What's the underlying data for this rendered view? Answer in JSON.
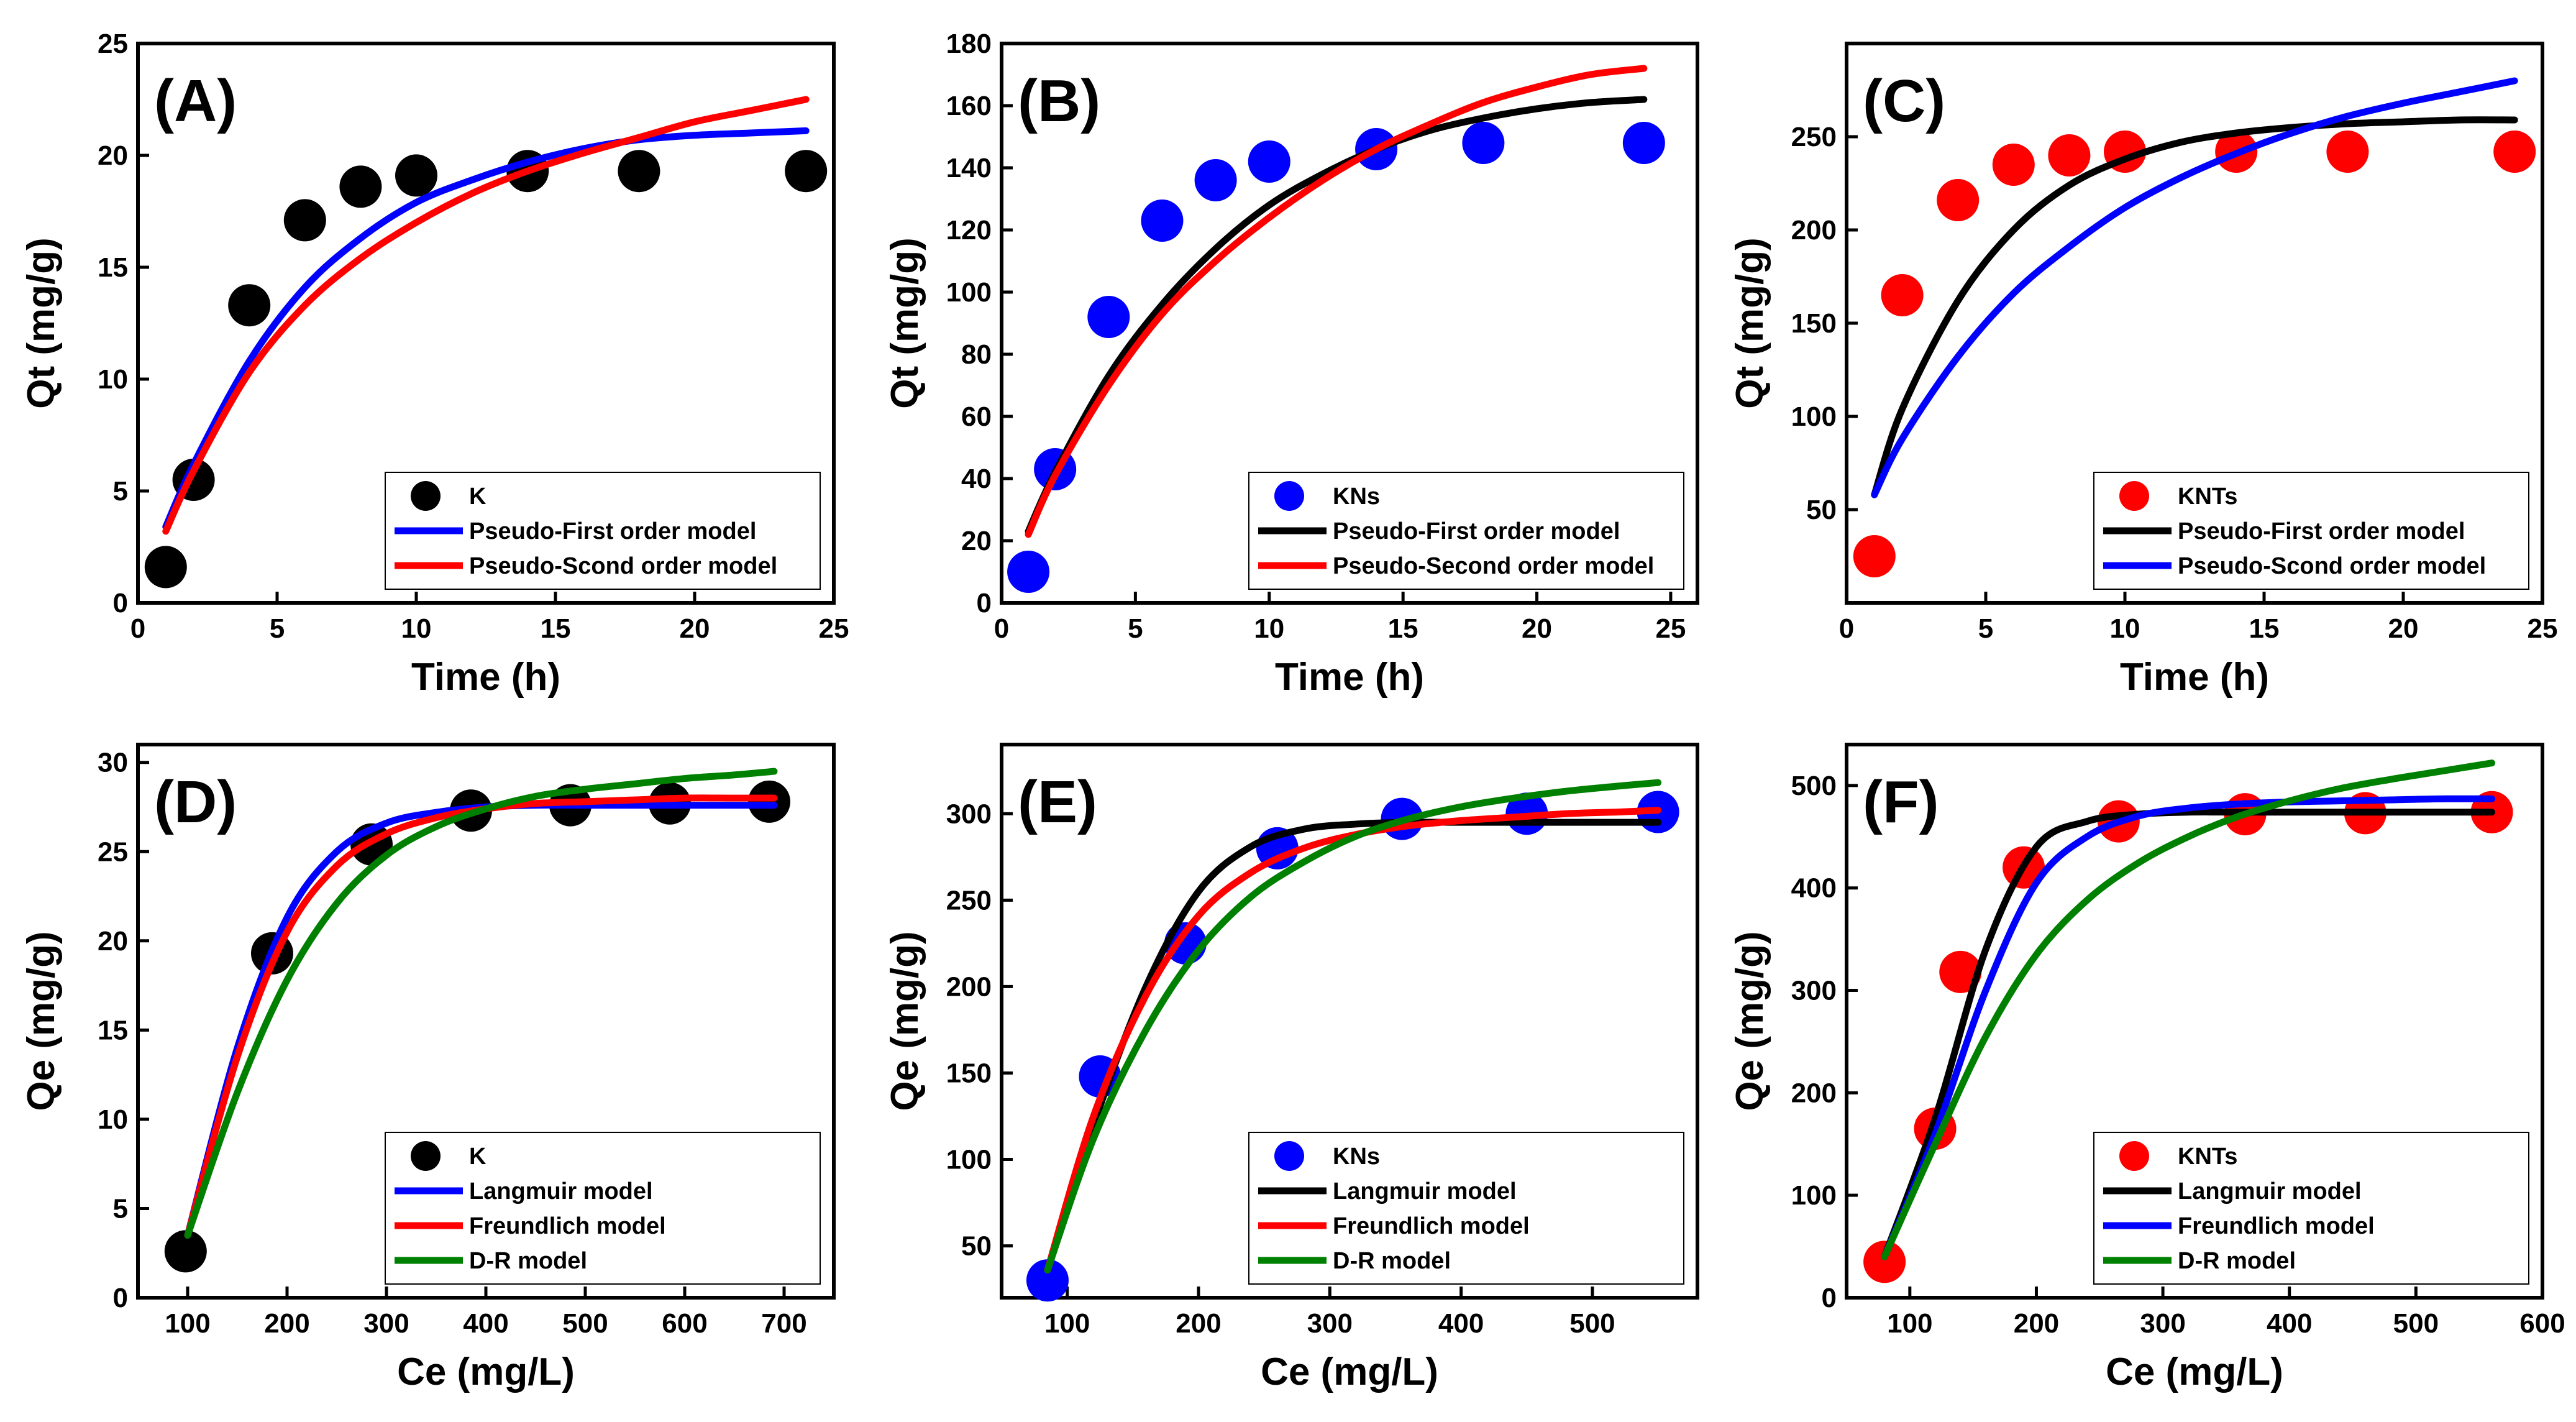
{
  "chart_data": [
    {
      "panel": "(A)",
      "type": "scatter",
      "xlabel": "Time (h)",
      "ylabel": "Qt (mg/g)",
      "xlim": [
        0,
        25
      ],
      "ylim": [
        0,
        25
      ],
      "xticks": [
        0,
        5,
        10,
        15,
        20,
        25
      ],
      "yticks": [
        0,
        5,
        10,
        15,
        20,
        25
      ],
      "points": {
        "name": "K",
        "color": "#000000",
        "x": [
          1,
          2,
          4,
          6,
          8,
          10,
          14,
          18,
          24
        ],
        "y": [
          1.6,
          5.5,
          13.3,
          17.1,
          18.6,
          19.1,
          19.3,
          19.3,
          19.3
        ]
      },
      "curves": [
        {
          "name": "Pseudo-First order model",
          "color": "#0000ff",
          "x": [
            1,
            2,
            4,
            6,
            8,
            10,
            12,
            14,
            16,
            18,
            20,
            22,
            24
          ],
          "y": [
            3.4,
            6.2,
            10.8,
            14.1,
            16.3,
            17.9,
            18.9,
            19.7,
            20.3,
            20.7,
            20.9,
            21.0,
            21.1
          ]
        },
        {
          "name": "Pseudo-Scond order model",
          "color": "#ff0000",
          "x": [
            1,
            2,
            4,
            6,
            8,
            10,
            12,
            14,
            16,
            18,
            20,
            22,
            24
          ],
          "y": [
            3.2,
            5.9,
            10.3,
            13.3,
            15.4,
            17.0,
            18.3,
            19.3,
            20.1,
            20.8,
            21.5,
            22.0,
            22.5
          ]
        }
      ],
      "legend": [
        "K",
        "Pseudo-First order model",
        "Pseudo-Scond order model"
      ],
      "legend_position": "bottom-right"
    },
    {
      "panel": "(B)",
      "type": "scatter",
      "xlabel": "Time (h)",
      "ylabel": "Qt (mg/g)",
      "xlim": [
        0,
        26
      ],
      "ylim": [
        0,
        180
      ],
      "xticks": [
        0,
        5,
        10,
        15,
        20,
        25
      ],
      "yticks": [
        0,
        20,
        40,
        60,
        80,
        100,
        120,
        140,
        160,
        180
      ],
      "points": {
        "name": "KNs",
        "color": "#0000ff",
        "x": [
          1,
          2,
          4,
          6,
          8,
          10,
          14,
          18,
          24
        ],
        "y": [
          10,
          43,
          92,
          123,
          136,
          142,
          146,
          148,
          148
        ]
      },
      "curves": [
        {
          "name": "Pseudo-First order model",
          "color": "#000000",
          "x": [
            1,
            2,
            4,
            6,
            8,
            10,
            12,
            14,
            16,
            18,
            20,
            22,
            24
          ],
          "y": [
            23,
            42,
            73,
            96,
            114,
            128,
            138,
            146,
            152,
            156,
            159,
            161,
            162
          ]
        },
        {
          "name": "Pseudo-Second order model",
          "color": "#ff0000",
          "x": [
            1,
            2,
            4,
            6,
            8,
            10,
            12,
            14,
            16,
            18,
            20,
            22,
            24
          ],
          "y": [
            22,
            41,
            70,
            93,
            110,
            124,
            136,
            146,
            154,
            161,
            166,
            170,
            172
          ]
        }
      ],
      "legend": [
        "KNs",
        "Pseudo-First order model",
        "Pseudo-Second order model"
      ],
      "legend_position": "bottom-right"
    },
    {
      "panel": "(C)",
      "type": "scatter",
      "xlabel": "Time (h)",
      "ylabel": "Qt (mg/g)",
      "xlim": [
        0,
        25
      ],
      "ylim": [
        0,
        300
      ],
      "xticks": [
        0,
        5,
        10,
        15,
        20,
        25
      ],
      "yticks": [
        50,
        100,
        150,
        200,
        250
      ],
      "points": {
        "name": "KNTs",
        "color": "#ff0000",
        "x": [
          1,
          2,
          4,
          6,
          8,
          10,
          14,
          18,
          24
        ],
        "y": [
          25,
          165,
          216,
          235,
          240,
          242,
          242,
          242,
          242
        ]
      },
      "curves": [
        {
          "name": "Pseudo-First order model",
          "color": "#000000",
          "x": [
            1,
            2,
            4,
            6,
            8,
            10,
            12,
            14,
            16,
            18,
            20,
            22,
            24
          ],
          "y": [
            58,
            104,
            162,
            200,
            224,
            238,
            247,
            252,
            255,
            257,
            258,
            259,
            259
          ]
        },
        {
          "name": "Pseudo-Scond order model",
          "color": "#0000ff",
          "x": [
            1,
            2,
            4,
            6,
            8,
            10,
            12,
            14,
            16,
            18,
            20,
            22,
            24
          ],
          "y": [
            58,
            88,
            132,
            166,
            191,
            212,
            228,
            241,
            252,
            261,
            268,
            274,
            280
          ]
        }
      ],
      "legend": [
        "KNTs",
        "Pseudo-First order model",
        "Pseudo-Scond order model"
      ],
      "legend_position": "bottom-right"
    },
    {
      "panel": "(D)",
      "type": "scatter",
      "xlabel": "Ce (mg/L)",
      "ylabel": "Qe (mg/g)",
      "xlim": [
        50,
        750
      ],
      "ylim": [
        0,
        31
      ],
      "xticks": [
        100,
        200,
        300,
        400,
        500,
        600,
        700
      ],
      "yticks": [
        0,
        5,
        10,
        15,
        20,
        25,
        30
      ],
      "points": {
        "name": "K",
        "color": "#000000",
        "x": [
          98,
          185,
          285,
          385,
          485,
          585,
          685
        ],
        "y": [
          2.6,
          19.3,
          25.4,
          27.3,
          27.6,
          27.7,
          27.8
        ]
      },
      "curves": [
        {
          "name": "Langmuir model",
          "color": "#0000ff",
          "x": [
            100,
            150,
            200,
            250,
            300,
            350,
            400,
            450,
            500,
            550,
            600,
            650,
            690
          ],
          "y": [
            3.5,
            14.0,
            21.3,
            25.0,
            26.6,
            27.2,
            27.5,
            27.6,
            27.6,
            27.6,
            27.6,
            27.6,
            27.6
          ]
        },
        {
          "name": "Freundlich model",
          "color": "#ff0000",
          "x": [
            100,
            150,
            200,
            250,
            300,
            350,
            400,
            450,
            500,
            550,
            600,
            650,
            690
          ],
          "y": [
            3.5,
            13.5,
            20.5,
            24.2,
            26.0,
            26.9,
            27.4,
            27.7,
            27.8,
            27.9,
            28.0,
            28.0,
            28.0
          ]
        },
        {
          "name": "D-R model",
          "color": "#008000",
          "x": [
            100,
            150,
            200,
            250,
            300,
            350,
            400,
            450,
            500,
            550,
            600,
            650,
            690
          ],
          "y": [
            3.5,
            11.5,
            17.8,
            22.1,
            24.8,
            26.4,
            27.4,
            28.1,
            28.5,
            28.8,
            29.1,
            29.3,
            29.5
          ]
        }
      ],
      "legend": [
        "K",
        "Langmuir model",
        "Freundlich model",
        "D-R model"
      ],
      "legend_position": "bottom-right"
    },
    {
      "panel": "(E)",
      "type": "scatter",
      "xlabel": "Ce (mg/L)",
      "ylabel": "Qe (mg/g)",
      "xlim": [
        50,
        580
      ],
      "ylim": [
        20,
        340
      ],
      "xticks": [
        100,
        200,
        300,
        400,
        500
      ],
      "yticks": [
        50,
        100,
        150,
        200,
        250,
        300
      ],
      "points": {
        "name": "KNs",
        "color": "#0000ff",
        "x": [
          85,
          125,
          190,
          260,
          355,
          450,
          550
        ],
        "y": [
          30,
          148,
          225,
          280,
          297,
          300,
          301
        ]
      },
      "curves": [
        {
          "name": "Langmuir model",
          "color": "#000000",
          "x": [
            85,
            120,
            160,
            200,
            240,
            280,
            320,
            360,
            400,
            440,
            480,
            520,
            550
          ],
          "y": [
            36,
            120,
            200,
            255,
            281,
            291,
            294,
            295,
            295,
            295,
            295,
            295,
            295
          ]
        },
        {
          "name": "Freundlich model",
          "color": "#ff0000",
          "x": [
            85,
            120,
            160,
            200,
            240,
            280,
            320,
            360,
            400,
            440,
            480,
            520,
            550
          ],
          "y": [
            36,
            125,
            195,
            241,
            266,
            280,
            288,
            293,
            296,
            298,
            300,
            301,
            302
          ]
        },
        {
          "name": "D-R model",
          "color": "#008000",
          "x": [
            85,
            120,
            160,
            200,
            240,
            280,
            320,
            360,
            400,
            440,
            480,
            520,
            550
          ],
          "y": [
            36,
            112,
            175,
            221,
            252,
            272,
            287,
            297,
            304,
            309,
            313,
            316,
            318
          ]
        }
      ],
      "legend": [
        "KNs",
        "Langmuir model",
        "Freundlich model",
        "D-R model"
      ],
      "legend_position": "bottom-right"
    },
    {
      "panel": "(F)",
      "type": "scatter",
      "xlabel": "Ce (mg/L)",
      "ylabel": "Qe (mg/g)",
      "xlim": [
        50,
        600
      ],
      "ylim": [
        0,
        540
      ],
      "xticks": [
        100,
        200,
        300,
        400,
        500,
        600
      ],
      "yticks": [
        0,
        100,
        200,
        300,
        400,
        500
      ],
      "points": {
        "name": "KNTs",
        "color": "#ff0000",
        "x": [
          80,
          120,
          140,
          190,
          265,
          365,
          460,
          560
        ],
        "y": [
          35,
          165,
          318,
          420,
          465,
          472,
          473,
          474
        ]
      },
      "curves": [
        {
          "name": "Langmuir model",
          "color": "#000000",
          "x": [
            80,
            120,
            160,
            200,
            240,
            280,
            320,
            360,
            400,
            440,
            480,
            520,
            560
          ],
          "y": [
            40,
            175,
            340,
            440,
            465,
            472,
            474,
            474,
            474,
            474,
            474,
            474,
            474
          ]
        },
        {
          "name": "Freundlich model",
          "color": "#0000ff",
          "x": [
            80,
            120,
            160,
            200,
            240,
            280,
            320,
            360,
            400,
            440,
            480,
            520,
            560
          ],
          "y": [
            40,
            160,
            300,
            405,
            450,
            470,
            478,
            482,
            484,
            485,
            486,
            487,
            487
          ]
        },
        {
          "name": "D-R model",
          "color": "#008000",
          "x": [
            80,
            120,
            160,
            200,
            240,
            280,
            320,
            360,
            400,
            440,
            480,
            520,
            560
          ],
          "y": [
            40,
            150,
            255,
            335,
            388,
            424,
            450,
            470,
            485,
            497,
            506,
            514,
            522
          ]
        }
      ],
      "legend": [
        "KNTs",
        "Langmuir model",
        "Freundlich model",
        "D-R model"
      ],
      "legend_position": "bottom-right"
    }
  ]
}
